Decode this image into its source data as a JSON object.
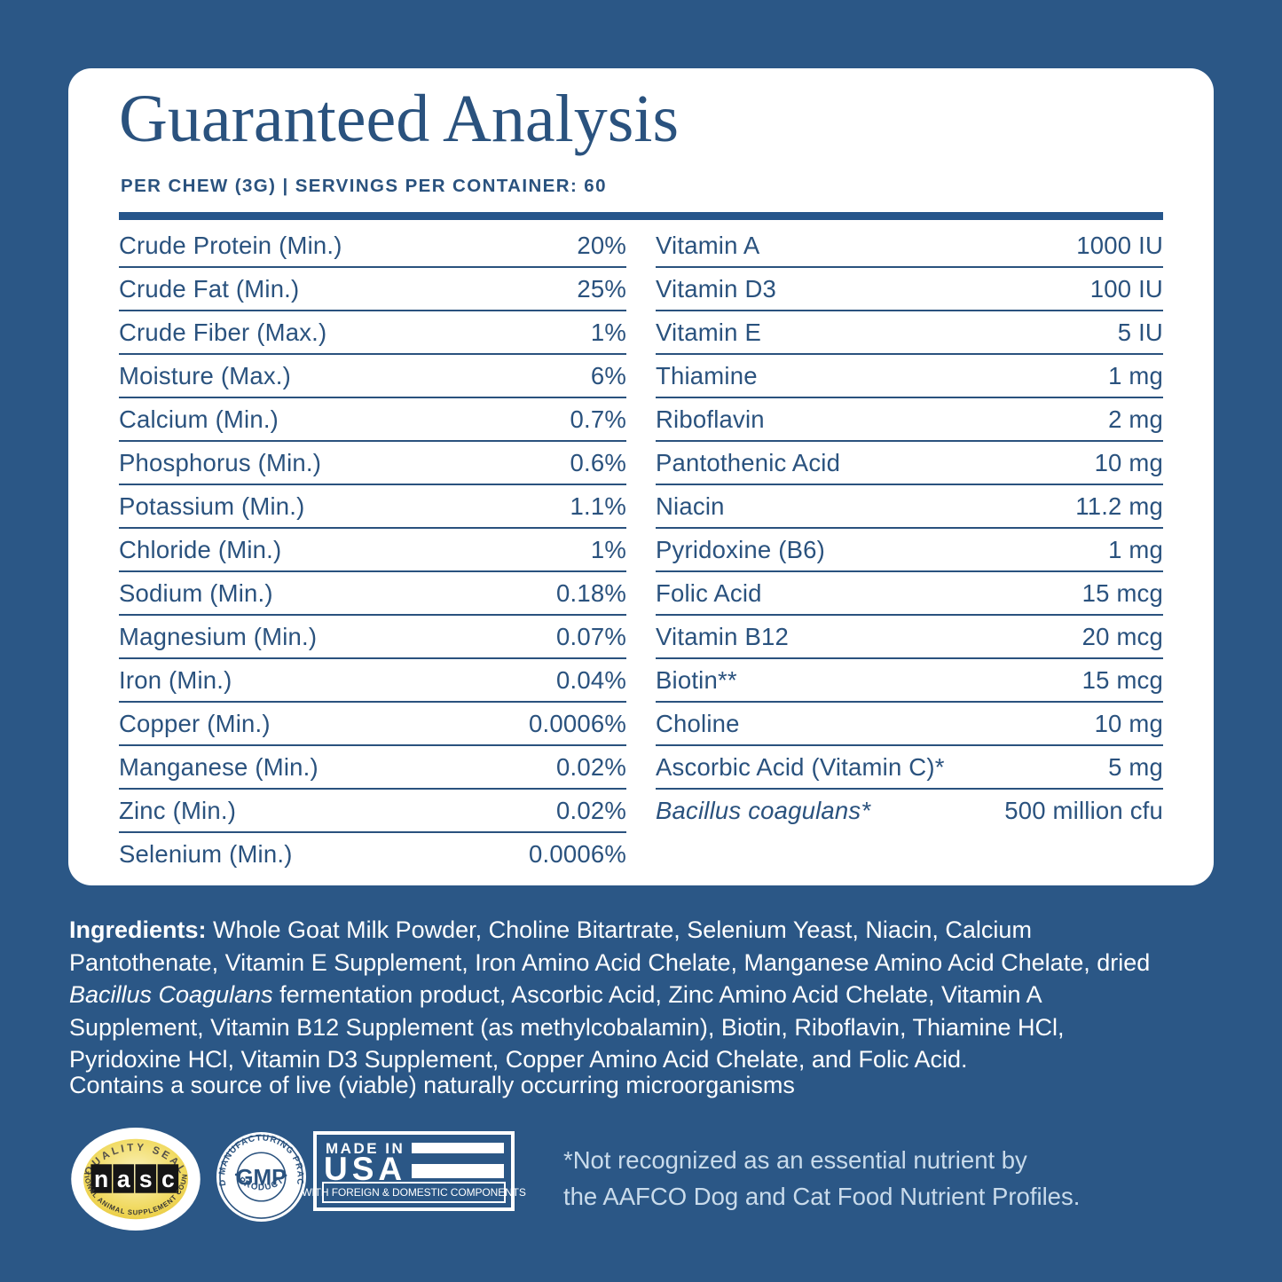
{
  "colors": {
    "background_blue": "#2b5786",
    "text_navy": "#2a527e",
    "card_white": "#ffffff",
    "divider_bar": "#26568b",
    "footnote_light_blue": "#c9dbeb",
    "nasc_gold": "#eecb3e"
  },
  "header": {
    "title": "Guaranteed Analysis",
    "subtitle": "PER CHEW (3G) | SERVINGS PER CONTAINER: 60"
  },
  "analysis_table": {
    "left_rows": [
      {
        "label": "Crude Protein (Min.)",
        "value": "20%"
      },
      {
        "label": "Crude Fat (Min.)",
        "value": "25%"
      },
      {
        "label": "Crude Fiber (Max.)",
        "value": "1%"
      },
      {
        "label": "Moisture (Max.)",
        "value": "6%"
      },
      {
        "label": "Calcium (Min.)",
        "value": "0.7%"
      },
      {
        "label": "Phosphorus (Min.)",
        "value": "0.6%"
      },
      {
        "label": "Potassium (Min.)",
        "value": "1.1%"
      },
      {
        "label": "Chloride (Min.)",
        "value": "1%"
      },
      {
        "label": "Sodium (Min.)",
        "value": "0.18%"
      },
      {
        "label": "Magnesium (Min.)",
        "value": "0.07%"
      },
      {
        "label": "Iron (Min.)",
        "value": "0.04%"
      },
      {
        "label": "Copper (Min.)",
        "value": "0.0006%"
      },
      {
        "label": "Manganese (Min.)",
        "value": "0.02%"
      },
      {
        "label": "Zinc (Min.)",
        "value": "0.02%"
      },
      {
        "label": "Selenium (Min.)",
        "value": "0.0006%"
      }
    ],
    "right_rows": [
      {
        "label": "Vitamin A",
        "value": "1000 IU"
      },
      {
        "label": "Vitamin D3",
        "value": "100 IU"
      },
      {
        "label": "Vitamin E",
        "value": "5 IU"
      },
      {
        "label": "Thiamine",
        "value": "1 mg"
      },
      {
        "label": "Riboflavin",
        "value": "2 mg"
      },
      {
        "label": "Pantothenic Acid",
        "value": "10 mg"
      },
      {
        "label": "Niacin",
        "value": "11.2 mg"
      },
      {
        "label": "Pyridoxine (B6)",
        "value": "1 mg"
      },
      {
        "label": "Folic Acid",
        "value": "15 mcg"
      },
      {
        "label": "Vitamin B12",
        "value": "20 mcg"
      },
      {
        "label": "Biotin**",
        "value": "15 mcg"
      },
      {
        "label": "Choline",
        "value": "10 mg"
      },
      {
        "label": "Ascorbic Acid (Vitamin C)*",
        "value": "5 mg"
      },
      {
        "label": "Bacillus coagulans*",
        "value": "500 million cfu",
        "italic": true
      }
    ]
  },
  "ingredients": {
    "segments": [
      {
        "text": "Ingredients: ",
        "style": "bold"
      },
      {
        "text": "Whole Goat Milk Powder, Choline Bitartrate, Selenium Yeast, Niacin, Calcium",
        "style": "normal"
      },
      {
        "br": true
      },
      {
        "text": "Pantothenate, Vitamin E Supplement, Iron Amino Acid Chelate, Manganese Amino Acid Chelate, dried",
        "style": "normal"
      },
      {
        "br": true
      },
      {
        "text": "Bacillus Coagulans",
        "style": "italic"
      },
      {
        "text": " fermentation product, Ascorbic Acid, Zinc Amino Acid Chelate, Vitamin A",
        "style": "normal"
      },
      {
        "br": true
      },
      {
        "text": "Supplement, Vitamin B12 Supplement (as methylcobalamin), Biotin, Riboflavin, Thiamine HCl,",
        "style": "normal"
      },
      {
        "br": true
      },
      {
        "text": "Pyridoxine HCl, Vitamin D3 Supplement, Copper Amino Acid Chelate, and Folic Acid.",
        "style": "normal"
      }
    ],
    "contains_note": "Contains a source of live (viable) naturally occurring microorganisms"
  },
  "badges": {
    "nasc": {
      "top_text": "QUALITY SEAL",
      "letters": [
        "n",
        "a",
        "s",
        "c"
      ],
      "bottom_text": "NATIONAL ANIMAL SUPPLEMENT COUNCIL"
    },
    "gmp": {
      "ring_text_top": "GOOD MANUFACTURING PRACTICE",
      "ring_text_bottom": "• PRODUCT •",
      "center": "GMP"
    },
    "usa": {
      "line1": "MADE IN",
      "line2": "USA",
      "strip_text": "WITH FOREIGN & DOMESTIC COMPONENTS"
    }
  },
  "footnote": {
    "line1": "*Not recognized as an essential nutrient by",
    "line2": "the AAFCO Dog and Cat Food Nutrient Profiles."
  }
}
